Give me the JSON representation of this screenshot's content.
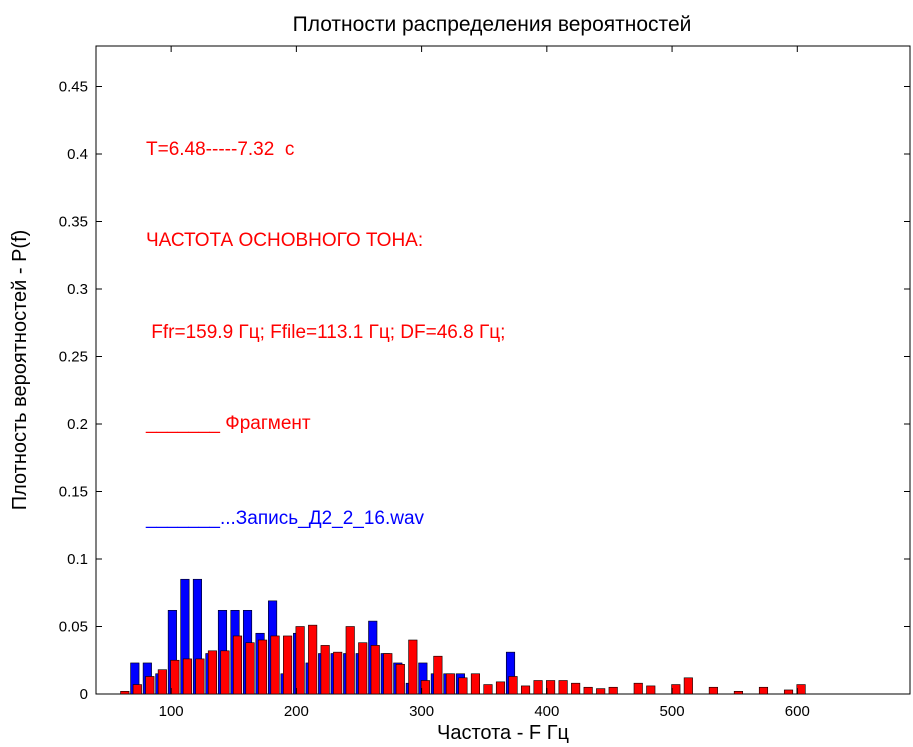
{
  "chart_data": {
    "type": "bar",
    "title": "Плотности распределения вероятностей",
    "xlabel": "Частота - F Гц",
    "ylabel": "Плотность вероятностей - P(f)",
    "xlim": [
      40,
      690
    ],
    "ylim": [
      0,
      0.48
    ],
    "xticks": [
      100,
      200,
      300,
      400,
      500,
      600
    ],
    "yticks": [
      0,
      0.05,
      0.1,
      0.15,
      0.2,
      0.25,
      0.3,
      0.35,
      0.4,
      0.45
    ],
    "ytick_labels": [
      "0",
      "0.05",
      "0.1",
      "0.15",
      "0.2",
      "0.25",
      "0.3",
      "0.35",
      "0.4",
      "0.45"
    ],
    "xtick_labels": [
      "100",
      "200",
      "300",
      "400",
      "500",
      "600"
    ],
    "grid": false,
    "annotations": [
      {
        "text": "T=6.48-----7.32  c",
        "color": "#ff0000"
      },
      {
        "text": "ЧАСТОТА ОСНОВНОГО ТОНА:",
        "color": "#ff0000"
      },
      {
        "text": " Ffr=159.9 Гц; Ffile=113.1 Гц; DF=46.8 Гц;",
        "color": "#ff0000"
      },
      {
        "text": "_______ Фрагмент",
        "color": "#ff0000"
      },
      {
        "text": "_______...Запись_Д2_2_16.wav",
        "color": "#0000ff"
      }
    ],
    "series": [
      {
        "color": "#0000ff",
        "x": [
          71,
          81,
          91,
          101,
          111,
          121,
          131,
          141,
          151,
          161,
          171,
          181,
          191,
          201,
          211,
          221,
          231,
          241,
          251,
          261,
          271,
          281,
          291,
          301,
          311,
          321,
          331,
          371
        ],
        "values": [
          0.023,
          0.023,
          0.015,
          0.062,
          0.085,
          0.085,
          0.03,
          0.062,
          0.062,
          0.062,
          0.045,
          0.069,
          0.015,
          0.045,
          0.023,
          0.03,
          0.03,
          0.03,
          0.03,
          0.054,
          0.03,
          0.023,
          0.008,
          0.023,
          0.015,
          0.015,
          0.015,
          0.031
        ]
      },
      {
        "color": "#ff0000",
        "x": [
          63,
          73,
          83,
          93,
          103,
          113,
          123,
          133,
          143,
          153,
          163,
          173,
          183,
          193,
          203,
          213,
          223,
          233,
          243,
          253,
          263,
          273,
          283,
          293,
          303,
          313,
          323,
          333,
          343,
          353,
          363,
          373,
          383,
          393,
          403,
          413,
          423,
          433,
          443,
          453,
          473,
          483,
          503,
          513,
          533,
          553,
          573,
          593,
          603
        ],
        "values": [
          0.002,
          0.007,
          0.013,
          0.018,
          0.025,
          0.026,
          0.026,
          0.032,
          0.032,
          0.043,
          0.038,
          0.04,
          0.043,
          0.043,
          0.05,
          0.051,
          0.036,
          0.031,
          0.05,
          0.038,
          0.036,
          0.03,
          0.022,
          0.04,
          0.01,
          0.028,
          0.015,
          0.012,
          0.015,
          0.007,
          0.009,
          0.013,
          0.006,
          0.01,
          0.01,
          0.01,
          0.008,
          0.005,
          0.004,
          0.005,
          0.008,
          0.006,
          0.007,
          0.012,
          0.005,
          0.002,
          0.005,
          0.003,
          0.007
        ]
      }
    ]
  }
}
